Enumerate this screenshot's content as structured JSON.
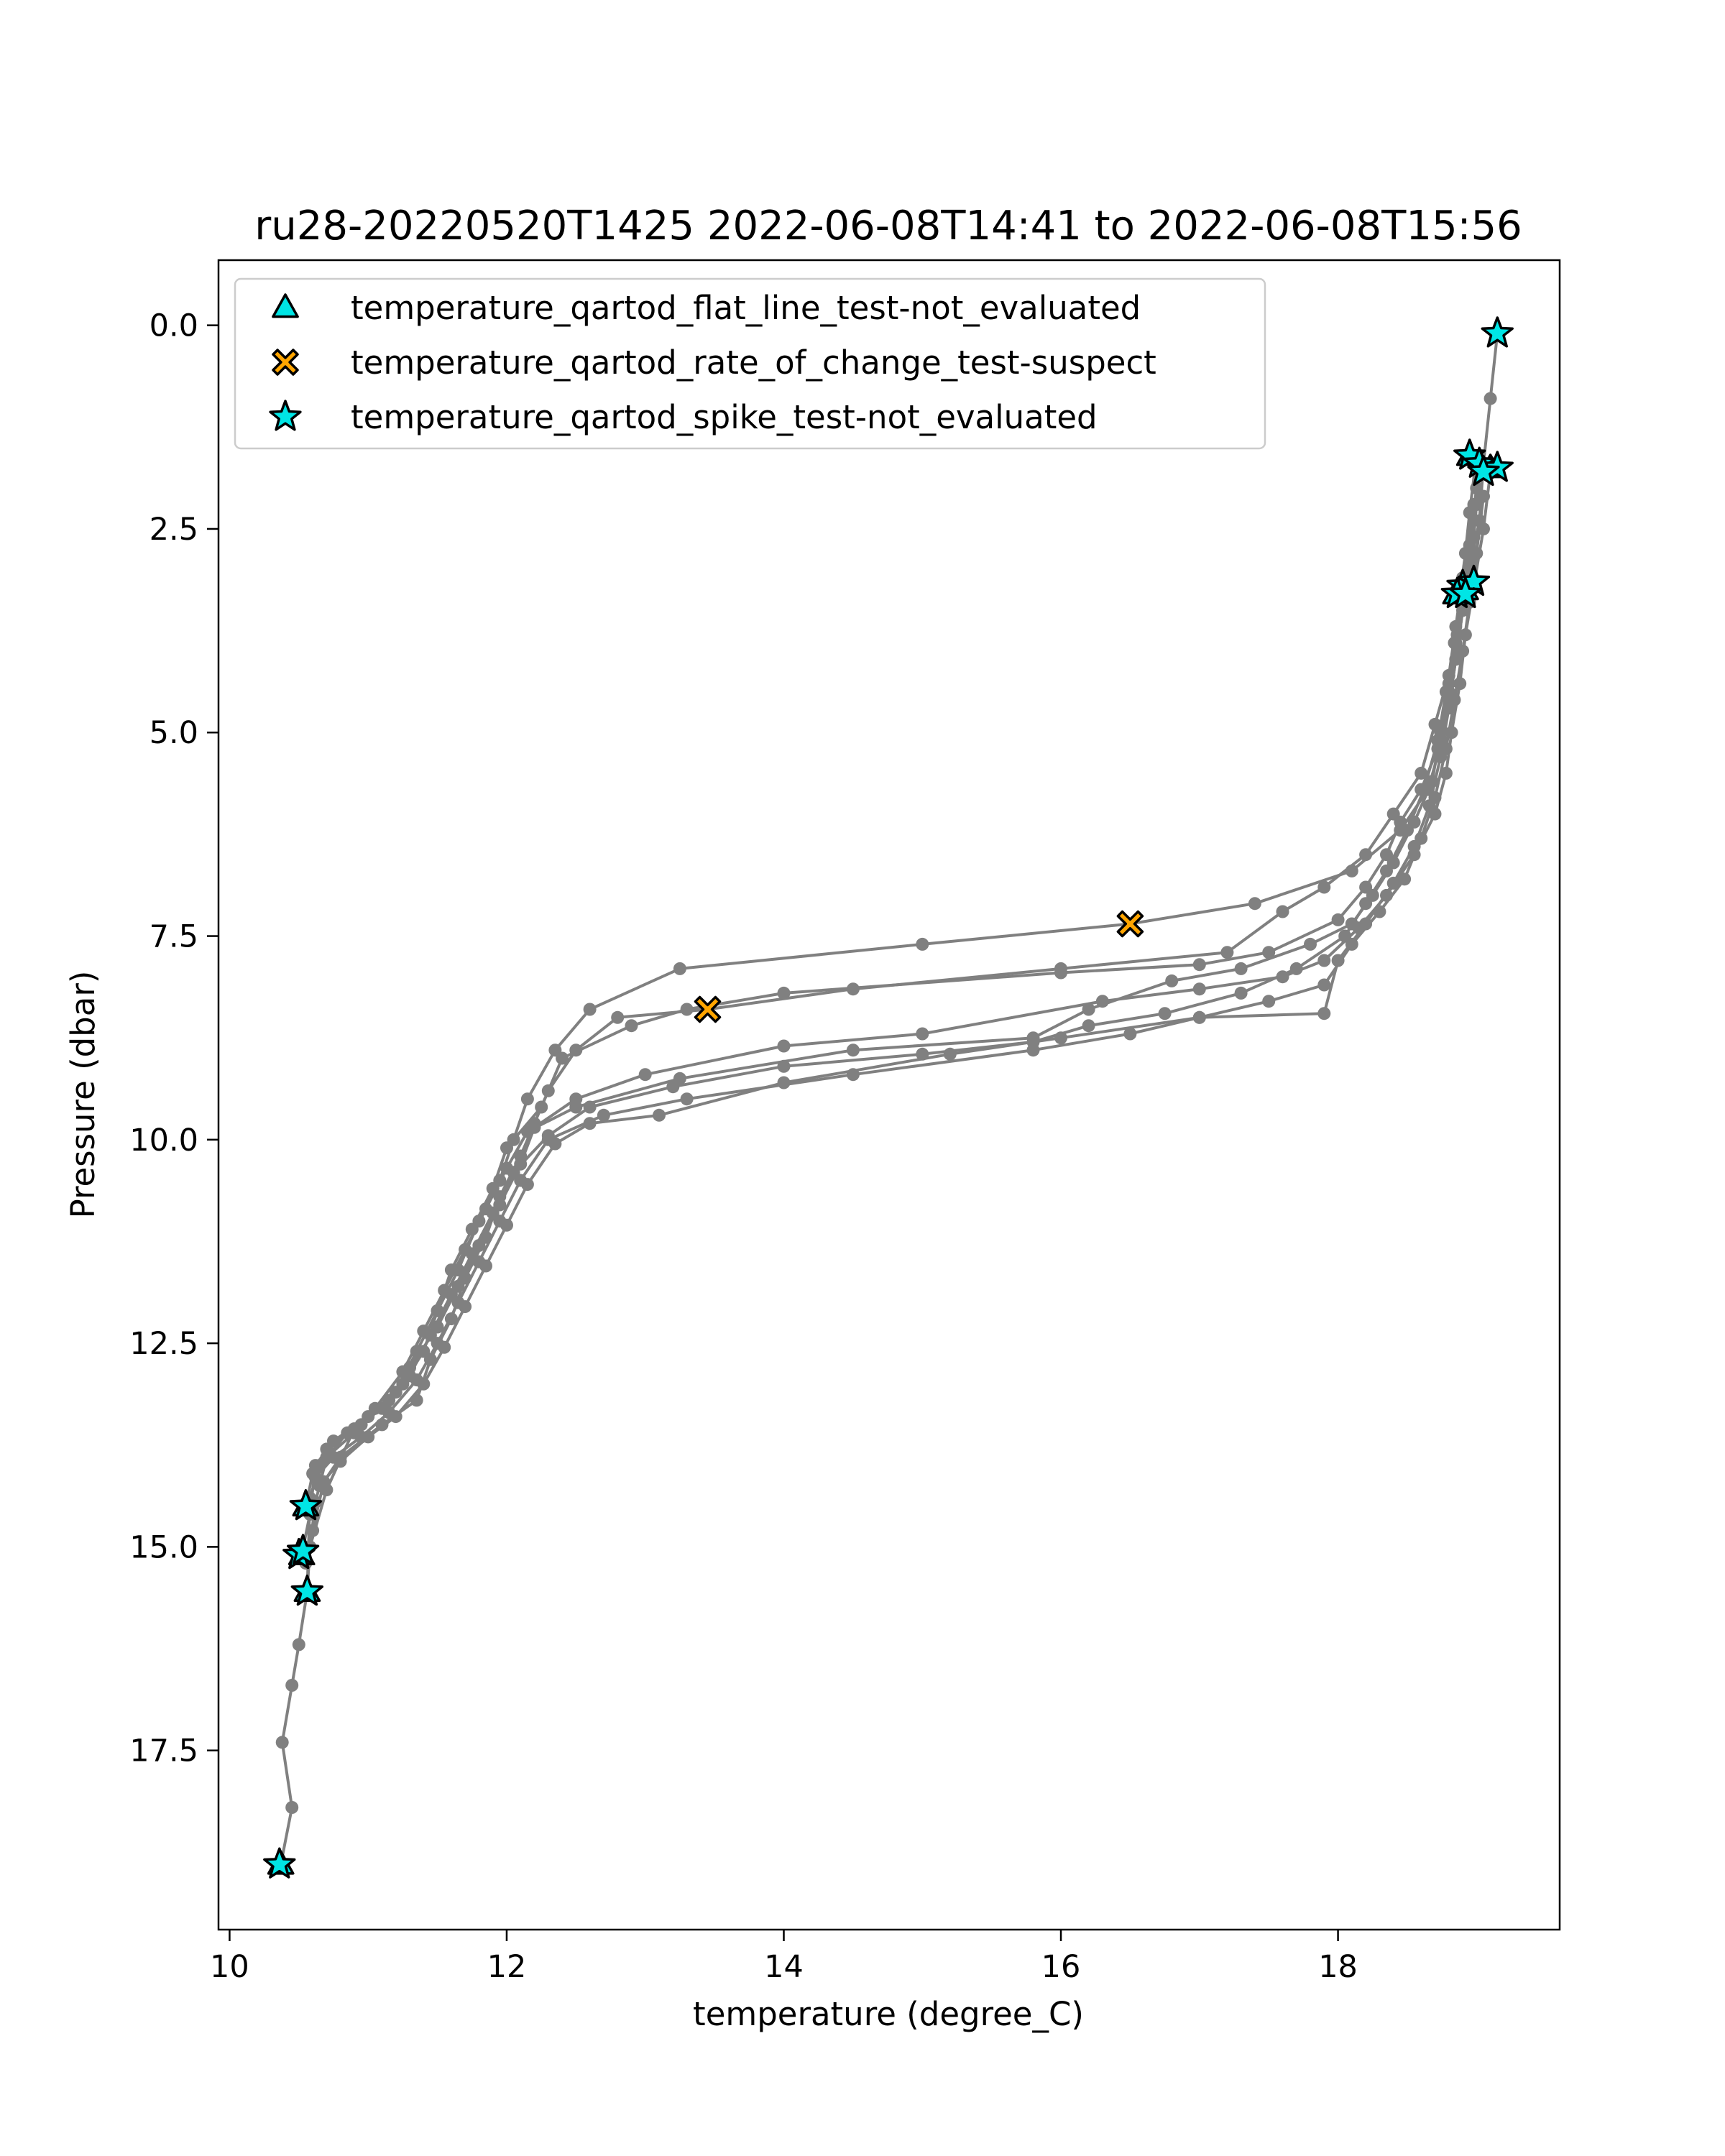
{
  "chart_data": {
    "type": "line",
    "title": "ru28-20220520T1425 2022-06-08T14:41 to 2022-06-08T15:56",
    "xlabel": "temperature (degree_C)",
    "ylabel": "Pressure (dbar)",
    "xlim": [
      9.92,
      19.6
    ],
    "ylim": [
      19.7,
      -0.8
    ],
    "y_inverted": true,
    "x_ticks": [
      {
        "value": 10,
        "label": "10"
      },
      {
        "value": 12,
        "label": "12"
      },
      {
        "value": 14,
        "label": "14"
      },
      {
        "value": 16,
        "label": "16"
      },
      {
        "value": 18,
        "label": "18"
      }
    ],
    "y_ticks": [
      {
        "value": 0.0,
        "label": "0.0"
      },
      {
        "value": 2.5,
        "label": "2.5"
      },
      {
        "value": 5.0,
        "label": "5.0"
      },
      {
        "value": 7.5,
        "label": "7.5"
      },
      {
        "value": 10.0,
        "label": "10.0"
      },
      {
        "value": 12.5,
        "label": "12.5"
      },
      {
        "value": 15.0,
        "label": "15.0"
      },
      {
        "value": 17.5,
        "label": "17.5"
      }
    ],
    "grid": false,
    "legend_position": "top-left",
    "colors": {
      "profile_line": "#808080",
      "not_evaluated": "#00e5e5",
      "suspect": "#ffa500",
      "marker_edge": "#000000"
    },
    "profiles": [
      [
        [
          19.15,
          0.1
        ],
        [
          19.1,
          0.9
        ],
        [
          19.05,
          1.7
        ],
        [
          18.98,
          2.2
        ],
        [
          18.92,
          2.8
        ],
        [
          18.88,
          3.3
        ],
        [
          18.85,
          3.9
        ],
        [
          18.8,
          4.5
        ],
        [
          18.75,
          5.1
        ],
        [
          18.65,
          5.7
        ],
        [
          18.45,
          6.2
        ],
        [
          18.1,
          6.7
        ],
        [
          17.4,
          7.1
        ],
        [
          16.5,
          7.35
        ],
        [
          15.0,
          7.6
        ],
        [
          13.25,
          7.9
        ],
        [
          12.6,
          8.4
        ],
        [
          12.35,
          8.9
        ],
        [
          12.15,
          9.5
        ],
        [
          12.05,
          10.0
        ],
        [
          11.95,
          10.5
        ],
        [
          11.8,
          11.0
        ],
        [
          11.65,
          11.6
        ],
        [
          11.5,
          12.1
        ],
        [
          11.35,
          12.6
        ],
        [
          11.2,
          13.1
        ],
        [
          10.9,
          13.6
        ],
        [
          10.7,
          13.9
        ],
        [
          10.62,
          14.45
        ],
        [
          10.58,
          15.0
        ],
        [
          10.56,
          15.55
        ],
        [
          10.5,
          16.2
        ],
        [
          10.45,
          16.7
        ],
        [
          10.38,
          17.4
        ],
        [
          10.45,
          18.2
        ],
        [
          10.37,
          18.9
        ]
      ],
      [
        [
          19.0,
          1.6
        ],
        [
          18.95,
          2.3
        ],
        [
          18.9,
          3.1
        ],
        [
          18.85,
          3.7
        ],
        [
          18.8,
          4.3
        ],
        [
          18.7,
          4.9
        ],
        [
          18.6,
          5.5
        ],
        [
          18.4,
          6.0
        ],
        [
          18.2,
          6.5
        ],
        [
          17.9,
          6.9
        ],
        [
          17.6,
          7.2
        ],
        [
          17.2,
          7.7
        ],
        [
          16.0,
          7.9
        ],
        [
          14.5,
          8.15
        ],
        [
          13.45,
          8.4
        ],
        [
          12.8,
          8.5
        ],
        [
          12.5,
          8.9
        ],
        [
          12.3,
          9.4
        ],
        [
          12.2,
          9.8
        ],
        [
          12.1,
          10.2
        ],
        [
          11.95,
          10.7
        ],
        [
          11.85,
          11.2
        ],
        [
          11.7,
          11.7
        ],
        [
          11.6,
          12.2
        ],
        [
          11.45,
          12.7
        ],
        [
          11.35,
          13.2
        ],
        [
          11.1,
          13.5
        ],
        [
          10.8,
          13.9
        ],
        [
          10.68,
          14.2
        ],
        [
          10.6,
          14.8
        ],
        [
          10.55,
          15.2
        ]
      ],
      [
        [
          19.05,
          1.7
        ],
        [
          19.02,
          2.4
        ],
        [
          18.95,
          3.0
        ],
        [
          18.9,
          3.5
        ],
        [
          18.85,
          4.1
        ],
        [
          18.8,
          4.7
        ],
        [
          18.72,
          5.2
        ],
        [
          18.6,
          5.7
        ],
        [
          18.45,
          6.1
        ],
        [
          18.35,
          6.5
        ],
        [
          18.2,
          6.9
        ],
        [
          18.0,
          7.3
        ],
        [
          17.5,
          7.7
        ],
        [
          17.0,
          7.85
        ],
        [
          16.0,
          7.95
        ],
        [
          14.0,
          8.2
        ],
        [
          13.3,
          8.4
        ],
        [
          12.9,
          8.6
        ],
        [
          12.4,
          9.0
        ],
        [
          12.25,
          9.6
        ],
        [
          12.0,
          10.1
        ],
        [
          11.9,
          10.6
        ],
        [
          11.75,
          11.1
        ],
        [
          11.6,
          11.6
        ],
        [
          11.5,
          12.1
        ],
        [
          11.4,
          12.6
        ],
        [
          11.25,
          13.0
        ],
        [
          11.0,
          13.4
        ],
        [
          10.75,
          13.7
        ],
        [
          10.62,
          14.0
        ],
        [
          10.58,
          14.6
        ],
        [
          10.52,
          15.1
        ]
      ],
      [
        [
          19.1,
          1.8
        ],
        [
          19.05,
          2.5
        ],
        [
          18.98,
          3.2
        ],
        [
          18.92,
          3.8
        ],
        [
          18.88,
          4.4
        ],
        [
          18.82,
          5.0
        ],
        [
          18.78,
          5.5
        ],
        [
          18.7,
          6.0
        ],
        [
          18.55,
          6.5
        ],
        [
          18.35,
          7.0
        ],
        [
          18.15,
          7.4
        ],
        [
          17.9,
          7.8
        ],
        [
          17.6,
          8.0
        ],
        [
          17.0,
          8.15
        ],
        [
          16.3,
          8.3
        ],
        [
          15.0,
          8.7
        ],
        [
          14.0,
          8.85
        ],
        [
          13.0,
          9.2
        ],
        [
          12.5,
          9.5
        ],
        [
          12.2,
          9.85
        ],
        [
          12.1,
          10.3
        ],
        [
          11.95,
          10.8
        ],
        [
          11.8,
          11.3
        ],
        [
          11.65,
          11.8
        ],
        [
          11.5,
          12.3
        ],
        [
          11.3,
          12.8
        ],
        [
          11.15,
          13.2
        ],
        [
          10.95,
          13.5
        ],
        [
          10.7,
          13.8
        ],
        [
          10.6,
          14.1
        ],
        [
          10.55,
          14.5
        ]
      ],
      [
        [
          19.02,
          1.8
        ],
        [
          18.98,
          2.6
        ],
        [
          18.92,
          3.2
        ],
        [
          18.86,
          3.8
        ],
        [
          18.8,
          4.4
        ],
        [
          18.74,
          5.0
        ],
        [
          18.68,
          5.6
        ],
        [
          18.55,
          6.1
        ],
        [
          18.4,
          6.6
        ],
        [
          18.25,
          7.0
        ],
        [
          18.1,
          7.35
        ],
        [
          17.8,
          7.6
        ],
        [
          17.3,
          7.9
        ],
        [
          16.8,
          8.05
        ],
        [
          16.2,
          8.4
        ],
        [
          15.8,
          8.75
        ],
        [
          14.5,
          8.9
        ],
        [
          13.25,
          9.25
        ],
        [
          12.5,
          9.6
        ],
        [
          12.15,
          9.9
        ],
        [
          12.0,
          10.35
        ],
        [
          11.85,
          10.85
        ],
        [
          11.7,
          11.35
        ],
        [
          11.55,
          11.85
        ],
        [
          11.4,
          12.35
        ],
        [
          11.25,
          12.85
        ],
        [
          11.05,
          13.3
        ],
        [
          10.85,
          13.6
        ],
        [
          10.65,
          14.0
        ],
        [
          10.58,
          14.4
        ],
        [
          10.56,
          15.55
        ]
      ],
      [
        [
          19.0,
          2.0
        ],
        [
          18.95,
          2.7
        ],
        [
          18.9,
          3.3
        ],
        [
          18.84,
          3.9
        ],
        [
          18.78,
          4.5
        ],
        [
          18.72,
          5.1
        ],
        [
          18.62,
          5.7
        ],
        [
          18.5,
          6.2
        ],
        [
          18.35,
          6.7
        ],
        [
          18.2,
          7.1
        ],
        [
          18.05,
          7.5
        ],
        [
          17.7,
          7.9
        ],
        [
          17.3,
          8.2
        ],
        [
          16.75,
          8.45
        ],
        [
          16.2,
          8.6
        ],
        [
          15.8,
          8.8
        ],
        [
          15.0,
          8.95
        ],
        [
          14.0,
          9.1
        ],
        [
          13.2,
          9.35
        ],
        [
          12.6,
          9.6
        ],
        [
          12.3,
          9.95
        ],
        [
          12.05,
          10.4
        ],
        [
          11.9,
          10.9
        ],
        [
          11.75,
          11.4
        ],
        [
          11.6,
          11.9
        ],
        [
          11.45,
          12.4
        ],
        [
          11.3,
          12.9
        ],
        [
          11.1,
          13.3
        ],
        [
          10.9,
          13.55
        ],
        [
          10.7,
          14.3
        ],
        [
          10.58,
          15.0
        ]
      ],
      [
        [
          19.05,
          2.1
        ],
        [
          19.0,
          2.8
        ],
        [
          18.95,
          3.4
        ],
        [
          18.9,
          4.0
        ],
        [
          18.84,
          4.6
        ],
        [
          18.78,
          5.2
        ],
        [
          18.7,
          5.8
        ],
        [
          18.6,
          6.3
        ],
        [
          18.48,
          6.8
        ],
        [
          18.3,
          7.2
        ],
        [
          18.1,
          7.6
        ],
        [
          17.9,
          8.1
        ],
        [
          17.5,
          8.3
        ],
        [
          17.0,
          8.5
        ],
        [
          16.5,
          8.7
        ],
        [
          15.8,
          8.9
        ],
        [
          14.5,
          9.2
        ],
        [
          13.3,
          9.5
        ],
        [
          12.7,
          9.7
        ],
        [
          12.3,
          10.0
        ],
        [
          12.1,
          10.5
        ],
        [
          11.95,
          11.0
        ],
        [
          11.8,
          11.5
        ],
        [
          11.65,
          12.0
        ],
        [
          11.5,
          12.5
        ],
        [
          11.35,
          12.95
        ],
        [
          11.15,
          13.35
        ],
        [
          10.95,
          13.65
        ],
        [
          10.75,
          13.9
        ],
        [
          10.62,
          14.15
        ]
      ],
      [
        [
          19.0,
          2.2
        ],
        [
          18.96,
          2.9
        ],
        [
          18.9,
          3.5
        ],
        [
          18.85,
          4.1
        ],
        [
          18.8,
          4.7
        ],
        [
          18.74,
          5.3
        ],
        [
          18.66,
          5.9
        ],
        [
          18.55,
          6.4
        ],
        [
          18.4,
          6.85
        ],
        [
          18.2,
          7.35
        ],
        [
          18.0,
          7.8
        ],
        [
          17.9,
          8.45
        ],
        [
          17.0,
          8.5
        ],
        [
          16.0,
          8.75
        ],
        [
          15.2,
          8.95
        ],
        [
          14.0,
          9.3
        ],
        [
          13.1,
          9.7
        ],
        [
          12.6,
          9.8
        ],
        [
          12.35,
          10.05
        ],
        [
          12.15,
          10.55
        ],
        [
          12.0,
          11.05
        ],
        [
          11.85,
          11.55
        ],
        [
          11.7,
          12.05
        ],
        [
          11.55,
          12.55
        ],
        [
          11.4,
          13.0
        ],
        [
          11.2,
          13.4
        ],
        [
          11.0,
          13.65
        ],
        [
          10.8,
          13.95
        ],
        [
          10.65,
          14.25
        ]
      ]
    ],
    "series": [
      {
        "name": "temperature_qartod_flat_line_test-not_evaluated",
        "marker": "triangle",
        "color": "#00e5e5",
        "points": [
          [
            10.55,
            14.5
          ],
          [
            10.52,
            15.1
          ],
          [
            10.56,
            15.55
          ],
          [
            10.37,
            18.9
          ],
          [
            18.95,
            1.6
          ],
          [
            19.1,
            1.75
          ],
          [
            18.92,
            3.25
          ],
          [
            18.85,
            3.3
          ]
        ]
      },
      {
        "name": "temperature_qartod_rate_of_change_test-suspect",
        "marker": "x",
        "color": "#ffa500",
        "points": [
          [
            16.5,
            7.35
          ],
          [
            13.45,
            8.4
          ]
        ]
      },
      {
        "name": "temperature_qartod_spike_test-not_evaluated",
        "marker": "star",
        "color": "#00e5e5",
        "points": [
          [
            19.15,
            0.1
          ],
          [
            18.95,
            1.6
          ],
          [
            19.02,
            1.7
          ],
          [
            19.15,
            1.75
          ],
          [
            19.05,
            1.8
          ],
          [
            18.9,
            3.2
          ],
          [
            18.98,
            3.15
          ],
          [
            18.86,
            3.3
          ],
          [
            18.92,
            3.3
          ],
          [
            10.55,
            14.5
          ],
          [
            10.5,
            15.1
          ],
          [
            10.53,
            15.05
          ],
          [
            10.56,
            15.55
          ],
          [
            10.36,
            18.9
          ]
        ]
      }
    ]
  }
}
